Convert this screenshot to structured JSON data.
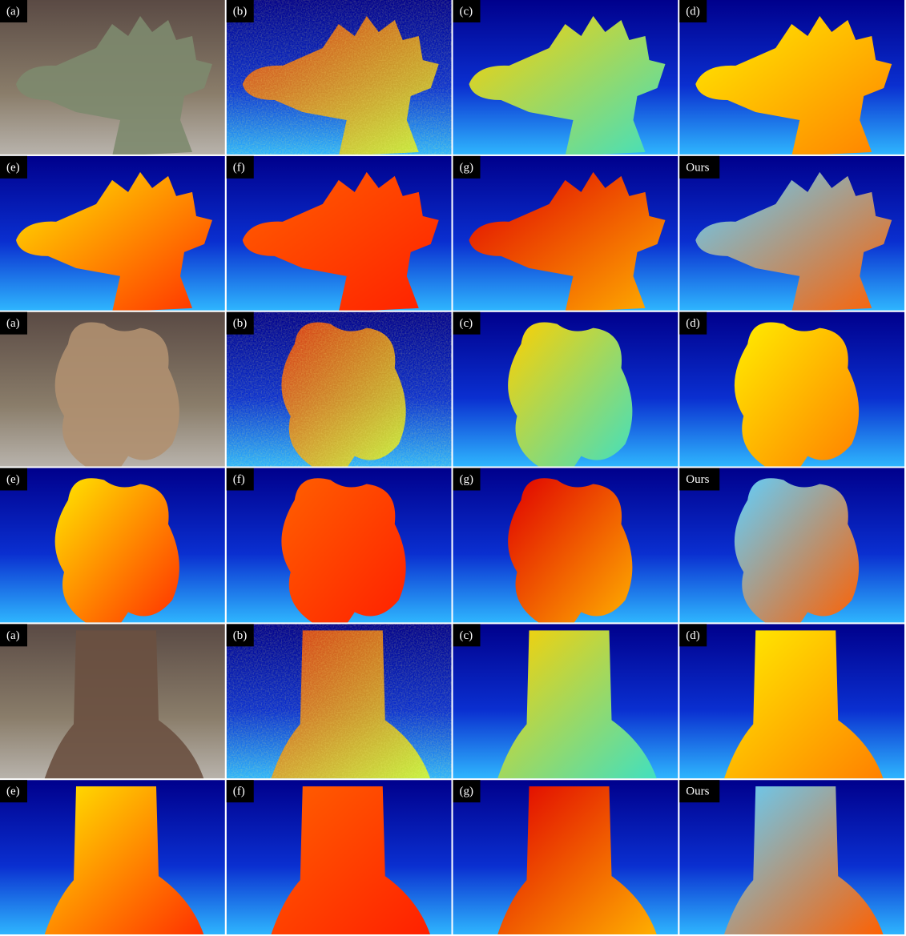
{
  "panels": [
    [
      "(a)",
      "(b)",
      "(c)",
      "(d)"
    ],
    [
      "(e)",
      "(f)",
      "(g)",
      "Ours"
    ],
    [
      "(a)",
      "(b)",
      "(c)",
      "(d)"
    ],
    [
      "(e)",
      "(f)",
      "(g)",
      "Ours"
    ],
    [
      "(a)",
      "(b)",
      "(c)",
      "(d)"
    ],
    [
      "(e)",
      "(f)",
      "(g)",
      "Ours"
    ]
  ]
}
